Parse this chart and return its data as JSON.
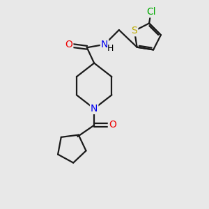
{
  "bg_color": "#e8e8e8",
  "atom_colors": {
    "C": "#000000",
    "N": "#0000ee",
    "O": "#ee0000",
    "S": "#bbaa00",
    "Cl": "#00aa00",
    "H": "#000000"
  },
  "bond_color": "#1a1a1a",
  "bond_width": 1.6,
  "font_size": 10,
  "fig_size": [
    3.0,
    3.0
  ],
  "dpi": 100
}
